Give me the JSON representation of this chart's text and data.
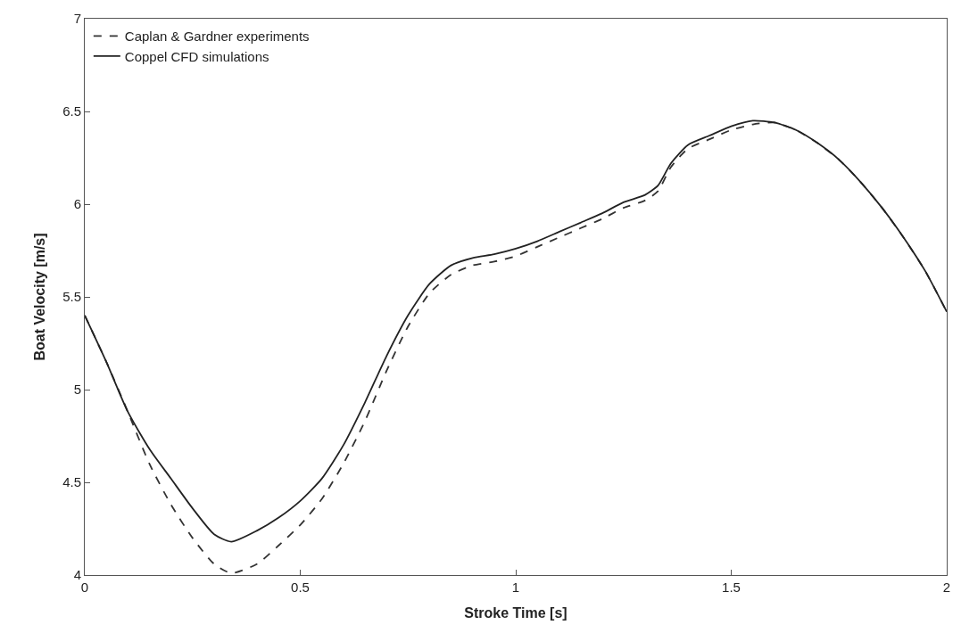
{
  "chart_data": {
    "type": "line",
    "xlabel": "Stroke Time [s]",
    "ylabel": "Boat Velocity [m/s]",
    "x": [
      0,
      0.05,
      0.1,
      0.15,
      0.2,
      0.25,
      0.3,
      0.34,
      0.4,
      0.45,
      0.5,
      0.55,
      0.6,
      0.65,
      0.7,
      0.75,
      0.8,
      0.85,
      0.9,
      0.95,
      1.0,
      1.05,
      1.1,
      1.15,
      1.2,
      1.25,
      1.3,
      1.33,
      1.36,
      1.4,
      1.45,
      1.5,
      1.55,
      1.6,
      1.65,
      1.7,
      1.75,
      1.8,
      1.85,
      1.9,
      1.95,
      2.0
    ],
    "series": [
      {
        "name": "Caplan & Gardner experiments",
        "color": "#333333",
        "line_style": "dashed",
        "values": [
          5.4,
          5.15,
          4.88,
          4.6,
          4.38,
          4.2,
          4.06,
          4.01,
          4.06,
          4.16,
          4.27,
          4.41,
          4.6,
          4.83,
          5.1,
          5.34,
          5.52,
          5.62,
          5.67,
          5.69,
          5.72,
          5.77,
          5.82,
          5.87,
          5.92,
          5.98,
          6.02,
          6.07,
          6.2,
          6.3,
          6.35,
          6.4,
          6.43,
          6.44,
          6.4,
          6.33,
          6.24,
          6.12,
          5.98,
          5.82,
          5.64,
          5.42
        ]
      },
      {
        "name": "Coppel CFD simulations",
        "color": "#222222",
        "line_style": "solid",
        "values": [
          5.4,
          5.15,
          4.88,
          4.68,
          4.52,
          4.36,
          4.22,
          4.18,
          4.24,
          4.31,
          4.4,
          4.52,
          4.7,
          4.93,
          5.18,
          5.4,
          5.57,
          5.67,
          5.71,
          5.73,
          5.76,
          5.8,
          5.85,
          5.9,
          5.95,
          6.01,
          6.05,
          6.1,
          6.22,
          6.32,
          6.37,
          6.42,
          6.45,
          6.44,
          6.4,
          6.33,
          6.24,
          6.12,
          5.98,
          5.82,
          5.64,
          5.42
        ]
      }
    ],
    "xlim": [
      0,
      2
    ],
    "xticks": [
      0,
      0.5,
      1,
      1.5,
      2
    ],
    "ylim": [
      4,
      7
    ],
    "yticks": [
      4,
      4.5,
      5,
      5.5,
      6,
      6.5,
      7
    ],
    "legend": "top left",
    "marker": "none"
  }
}
